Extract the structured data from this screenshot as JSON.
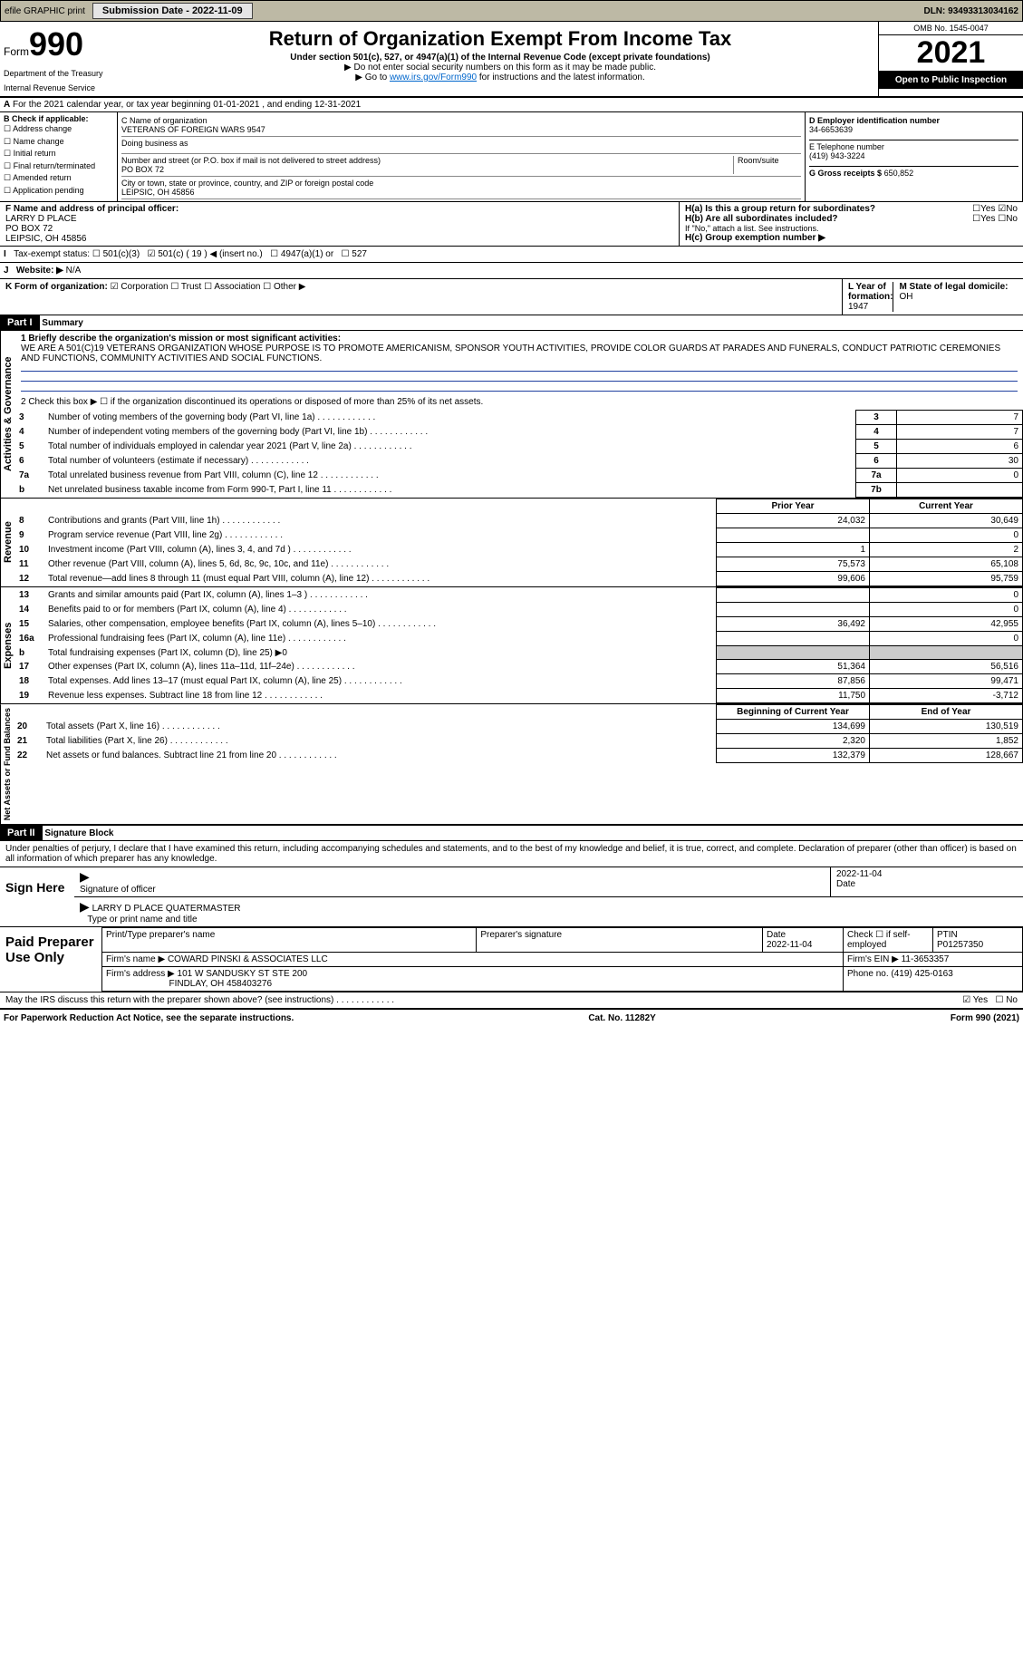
{
  "topbar": {
    "efile": "efile GRAPHIC print",
    "subbtn": "Submission Date - 2022-11-09",
    "dln": "DLN: 93493313034162"
  },
  "header": {
    "form_word": "Form",
    "form_no": "990",
    "title": "Return of Organization Exempt From Income Tax",
    "sub": "Under section 501(c), 527, or 4947(a)(1) of the Internal Revenue Code (except private foundations)",
    "note1": "▶ Do not enter social security numbers on this form as it may be made public.",
    "note2": "▶ Go to ",
    "link": "www.irs.gov/Form990",
    "note3": " for instructions and the latest information.",
    "dept": "Department of the Treasury",
    "irs": "Internal Revenue Service",
    "omb": "OMB No. 1545-0047",
    "year": "2021",
    "open": "Open to Public Inspection"
  },
  "lineA": "For the 2021 calendar year, or tax year beginning 01-01-2021    , and ending 12-31-2021",
  "B": {
    "title": "B Check if applicable:",
    "items": [
      "Address change",
      "Name change",
      "Initial return",
      "Final return/terminated",
      "Amended return",
      "Application pending"
    ]
  },
  "C": {
    "label": "C Name of organization",
    "name": "VETERANS OF FOREIGN WARS 9547",
    "dba": "Doing business as",
    "street_lbl": "Number and street (or P.O. box if mail is not delivered to street address)",
    "room": "Room/suite",
    "street": "PO BOX 72",
    "city_lbl": "City or town, state or province, country, and ZIP or foreign postal code",
    "city": "LEIPSIC, OH  45856"
  },
  "D": {
    "label": "D Employer identification number",
    "ein": "34-6653639"
  },
  "E": {
    "label": "E Telephone number",
    "phone": "(419) 943-3224"
  },
  "G": {
    "label": "G Gross receipts $",
    "amt": "650,852"
  },
  "F": {
    "label": "F Name and address of principal officer:",
    "l1": "LARRY D PLACE",
    "l2": "PO BOX 72",
    "l3": "LEIPSIC, OH  45856"
  },
  "H": {
    "a": "H(a)  Is this a group return for subordinates?",
    "b": "H(b)  Are all subordinates included?",
    "bnote": "If \"No,\" attach a list. See instructions.",
    "c": "H(c)  Group exemption number ▶",
    "yes": "Yes",
    "no": "No",
    "no_checked": "☑"
  },
  "I": {
    "label": "Tax-exempt status:",
    "a": "501(c)(3)",
    "b": "501(c) ( 19 ) ◀ (insert no.)",
    "c": "4947(a)(1) or",
    "d": "527",
    "bcheck": "☑"
  },
  "J": {
    "label": "Website: ▶",
    "val": "N/A"
  },
  "K": {
    "label": "K Form of organization:",
    "corp": "Corporation",
    "trust": "Trust",
    "assoc": "Association",
    "other": "Other ▶",
    "check": "☑"
  },
  "L": {
    "label": "L Year of formation:",
    "val": "1947"
  },
  "M": {
    "label": "M State of legal domicile:",
    "val": "OH"
  },
  "p1": {
    "title": "Part I",
    "name": "Summary"
  },
  "gov": {
    "side": "Activities & Governance",
    "l1": "1  Briefly describe the organization's mission or most significant activities:",
    "mission": "WE ARE A 501(C)19 VETERANS ORGANIZATION WHOSE PURPOSE IS TO PROMOTE AMERICANISM, SPONSOR YOUTH ACTIVITIES, PROVIDE COLOR GUARDS AT PARADES AND FUNERALS, CONDUCT PATRIOTIC CEREMONIES AND FUNCTIONS, COMMUNITY ACTIVITIES AND SOCIAL FUNCTIONS.",
    "l2": "2   Check this box ▶ ☐ if the organization discontinued its operations or disposed of more than 25% of its net assets.",
    "rows": [
      {
        "n": "3",
        "t": "Number of voting members of the governing body (Part VI, line 1a)",
        "box": "3",
        "v": "7"
      },
      {
        "n": "4",
        "t": "Number of independent voting members of the governing body (Part VI, line 1b)",
        "box": "4",
        "v": "7"
      },
      {
        "n": "5",
        "t": "Total number of individuals employed in calendar year 2021 (Part V, line 2a)",
        "box": "5",
        "v": "6"
      },
      {
        "n": "6",
        "t": "Total number of volunteers (estimate if necessary)",
        "box": "6",
        "v": "30"
      },
      {
        "n": "7a",
        "t": "Total unrelated business revenue from Part VIII, column (C), line 12",
        "box": "7a",
        "v": "0"
      },
      {
        "n": "b",
        "t": "Net unrelated business taxable income from Form 990-T, Part I, line 11",
        "box": "7b",
        "v": ""
      }
    ]
  },
  "rev": {
    "side": "Revenue",
    "py": "Prior Year",
    "cy": "Current Year",
    "rows": [
      {
        "n": "8",
        "t": "Contributions and grants (Part VIII, line 1h)",
        "p": "24,032",
        "c": "30,649"
      },
      {
        "n": "9",
        "t": "Program service revenue (Part VIII, line 2g)",
        "p": "",
        "c": "0"
      },
      {
        "n": "10",
        "t": "Investment income (Part VIII, column (A), lines 3, 4, and 7d )",
        "p": "1",
        "c": "2"
      },
      {
        "n": "11",
        "t": "Other revenue (Part VIII, column (A), lines 5, 6d, 8c, 9c, 10c, and 11e)",
        "p": "75,573",
        "c": "65,108"
      },
      {
        "n": "12",
        "t": "Total revenue—add lines 8 through 11 (must equal Part VIII, column (A), line 12)",
        "p": "99,606",
        "c": "95,759"
      }
    ]
  },
  "exp": {
    "side": "Expenses",
    "rows": [
      {
        "n": "13",
        "t": "Grants and similar amounts paid (Part IX, column (A), lines 1–3 )",
        "p": "",
        "c": "0"
      },
      {
        "n": "14",
        "t": "Benefits paid to or for members (Part IX, column (A), line 4)",
        "p": "",
        "c": "0"
      },
      {
        "n": "15",
        "t": "Salaries, other compensation, employee benefits (Part IX, column (A), lines 5–10)",
        "p": "36,492",
        "c": "42,955"
      },
      {
        "n": "16a",
        "t": "Professional fundraising fees (Part IX, column (A), line 11e)",
        "p": "",
        "c": "0"
      },
      {
        "n": "b",
        "t": "Total fundraising expenses (Part IX, column (D), line 25) ▶0",
        "p": "—",
        "c": "—"
      },
      {
        "n": "17",
        "t": "Other expenses (Part IX, column (A), lines 11a–11d, 11f–24e)",
        "p": "51,364",
        "c": "56,516"
      },
      {
        "n": "18",
        "t": "Total expenses. Add lines 13–17 (must equal Part IX, column (A), line 25)",
        "p": "87,856",
        "c": "99,471"
      },
      {
        "n": "19",
        "t": "Revenue less expenses. Subtract line 18 from line 12",
        "p": "11,750",
        "c": "-3,712"
      }
    ]
  },
  "net": {
    "side": "Net Assets or Fund Balances",
    "by": "Beginning of Current Year",
    "ey": "End of Year",
    "rows": [
      {
        "n": "20",
        "t": "Total assets (Part X, line 16)",
        "p": "134,699",
        "c": "130,519"
      },
      {
        "n": "21",
        "t": "Total liabilities (Part X, line 26)",
        "p": "2,320",
        "c": "1,852"
      },
      {
        "n": "22",
        "t": "Net assets or fund balances. Subtract line 21 from line 20",
        "p": "132,379",
        "c": "128,667"
      }
    ]
  },
  "p2": {
    "title": "Part II",
    "name": "Signature Block",
    "decl": "Under penalties of perjury, I declare that I have examined this return, including accompanying schedules and statements, and to the best of my knowledge and belief, it is true, correct, and complete. Declaration of preparer (other than officer) is based on all information of which preparer has any knowledge."
  },
  "sign": {
    "here": "Sign Here",
    "sig": "Signature of officer",
    "date": "Date",
    "dval": "2022-11-04",
    "name": "LARRY D PLACE QUATERMASTER",
    "type": "Type or print name and title"
  },
  "paid": {
    "title": "Paid Preparer Use Only",
    "h1": "Print/Type preparer's name",
    "h2": "Preparer's signature",
    "h3": "Date",
    "h4": "Check ☐ if self-employed",
    "h5": "PTIN",
    "date": "2022-11-04",
    "ptin": "P01257350",
    "firm_lbl": "Firm's name    ▶",
    "firm": "COWARD PINSKI & ASSOCIATES LLC",
    "ein_lbl": "Firm's EIN ▶",
    "ein": "11-3653357",
    "addr_lbl": "Firm's address ▶",
    "addr1": "101 W SANDUSKY ST STE 200",
    "addr2": "FINDLAY, OH  458403276",
    "phone_lbl": "Phone no.",
    "phone": "(419) 425-0163"
  },
  "may": {
    "q": "May the IRS discuss this return with the preparer shown above? (see instructions)",
    "yes": "Yes",
    "no": "No",
    "ycheck": "☑"
  },
  "footer": {
    "l": "For Paperwork Reduction Act Notice, see the separate instructions.",
    "c": "Cat. No. 11282Y",
    "r": "Form 990 (2021)"
  }
}
